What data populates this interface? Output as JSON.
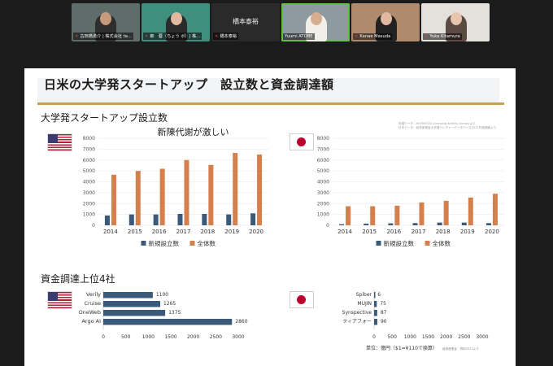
{
  "participants": [
    {
      "name": "古田橋勇介 | 株式会社 ta...",
      "type": "video"
    },
    {
      "name": "郎　蓉（ちょう ボ）| 株...",
      "type": "video"
    },
    {
      "name": "橋本泰裕",
      "display": "橋本泰裕",
      "type": "name_only"
    },
    {
      "name": "Yuumi ATOBE",
      "type": "video",
      "active": true
    },
    {
      "name": "Kanae Masuda",
      "type": "video"
    },
    {
      "name": "Yuka Kitamura",
      "type": "video"
    }
  ],
  "slide": {
    "title": "日米の大学発スタートアップ　設立数と資金調達額",
    "section1_title": "大学発スタートアップ設立数",
    "section2_title": "資金調達上位4社",
    "source_line1": "米国データ：AUTM2020 Licensing Activity Surveyより",
    "source_line2": "日本データ：経済産業省大学発ベンチャーデータベース2021年度調査より",
    "unit_note": "単位：億円（$1=¥110で換算）",
    "unit_small": "経済産業省　資料2023より"
  },
  "colors": {
    "new": "#3b5a7a",
    "total": "#d57f4c",
    "gold": "#caa050",
    "us_bar": "#3b5a7a"
  },
  "chart_data": [
    {
      "type": "bar",
      "title": "",
      "annotation": "新陳代謝が激しい",
      "categories": [
        "2014",
        "2015",
        "2016",
        "2017",
        "2018",
        "2019",
        "2020"
      ],
      "series": [
        {
          "name": "新規設立数",
          "values": [
            900,
            1000,
            1000,
            1050,
            1050,
            1000,
            1100
          ]
        },
        {
          "name": "全体数",
          "values": [
            4650,
            5000,
            5200,
            6000,
            5550,
            6650,
            6500
          ]
        }
      ],
      "yticks": [
        0,
        1000,
        2000,
        3000,
        4000,
        5000,
        6000,
        7000,
        8000
      ],
      "ylim": [
        0,
        8000
      ],
      "legend": "bottom"
    },
    {
      "type": "bar",
      "title": "",
      "categories": [
        "2014",
        "2015",
        "2016",
        "2017",
        "2018",
        "2019",
        "2020"
      ],
      "series": [
        {
          "name": "新規設立数",
          "values": [
            100,
            150,
            180,
            200,
            250,
            250,
            200
          ]
        },
        {
          "name": "全体数",
          "values": [
            1750,
            1750,
            1800,
            2100,
            2250,
            2550,
            2900
          ]
        }
      ],
      "yticks": [
        0,
        1000,
        2000,
        3000,
        4000,
        5000,
        6000,
        7000,
        8000
      ],
      "ylim": [
        0,
        8000
      ],
      "legend": "bottom"
    },
    {
      "type": "bar",
      "orientation": "horizontal",
      "categories": [
        "Verily",
        "Cruise",
        "OneWeb",
        "Argo AI"
      ],
      "values": [
        1100,
        1265,
        1375,
        2860
      ],
      "xticks": [
        0,
        500,
        1000,
        1500,
        2000,
        2500,
        3000
      ],
      "xlim": [
        0,
        3000
      ]
    },
    {
      "type": "bar",
      "orientation": "horizontal",
      "categories": [
        "Spiber",
        "MUJIN",
        "Synspective",
        "ティアフォー"
      ],
      "values": [
        6,
        75,
        87,
        90
      ],
      "xticks": [
        0,
        500,
        1000,
        1500,
        2000,
        2500,
        3000
      ],
      "xlim": [
        0,
        3000
      ]
    }
  ]
}
